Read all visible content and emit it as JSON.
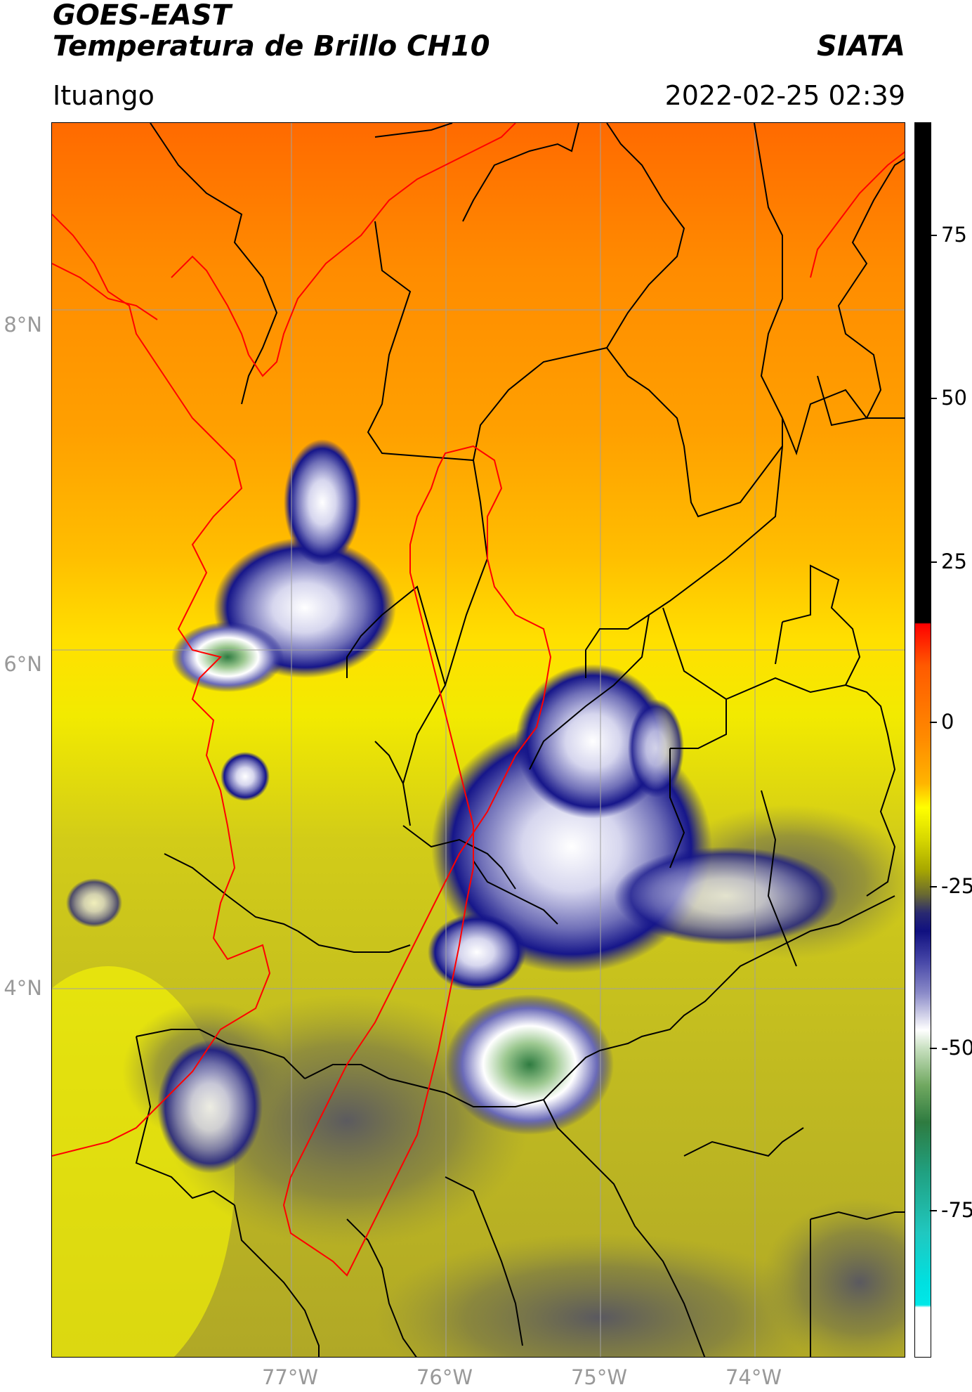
{
  "header": {
    "title_line1": "GOES-EAST",
    "title_line2": "Temperatura de Brillo CH10",
    "brand": "SIATA",
    "region": "Ituango",
    "timestamp": "2022-02-25 02:39"
  },
  "map": {
    "lat_labels": [
      "8°N",
      "6°N",
      "4°N"
    ],
    "lon_labels": [
      "77°W",
      "76°W",
      "75°W",
      "74°W"
    ],
    "colors": {
      "border_national": "#ff0000",
      "border_department": "#000000",
      "gridline": "#a0a0a0"
    }
  },
  "colorbar": {
    "ticks": [
      "75",
      "50",
      "25",
      "0",
      "-25",
      "-50",
      "-75"
    ]
  }
}
